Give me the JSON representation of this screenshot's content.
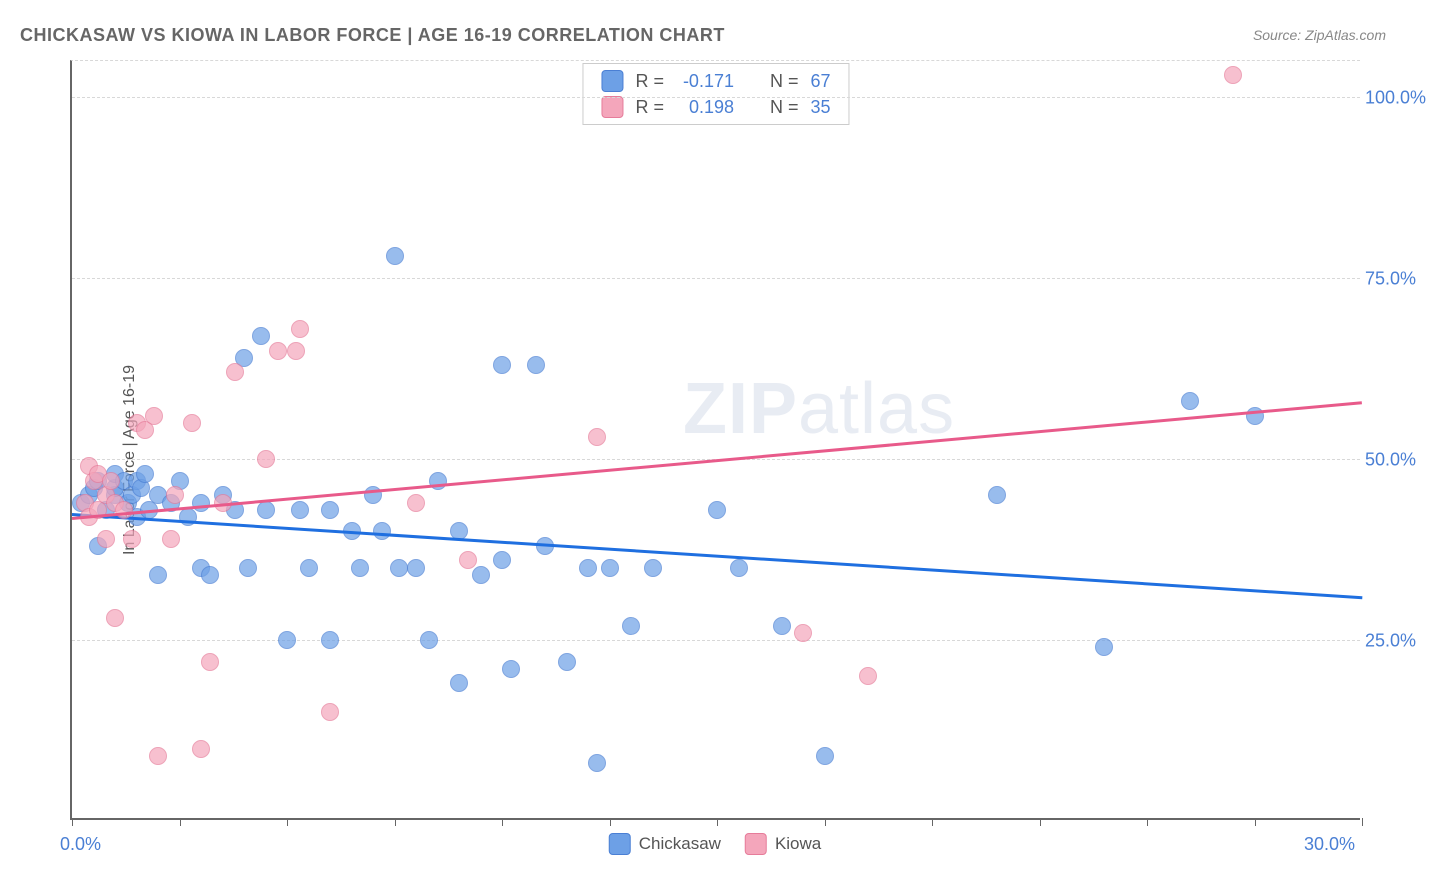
{
  "header": {
    "title": "CHICKASAW VS KIOWA IN LABOR FORCE | AGE 16-19 CORRELATION CHART",
    "source": "Source: ZipAtlas.com"
  },
  "chart": {
    "type": "scatter",
    "watermark": "ZIPatlas",
    "y_axis_title": "In Labor Force | Age 16-19",
    "background_color": "#ffffff",
    "grid_color": "#d8d8d8",
    "axis_color": "#666666",
    "tick_label_color": "#4a7fd4",
    "tick_fontsize": 18,
    "xlim": [
      0,
      30
    ],
    "ylim": [
      0,
      105
    ],
    "x_tick_positions": [
      0,
      2.5,
      5.0,
      7.5,
      10.0,
      12.5,
      15.0,
      17.5,
      20.0,
      22.5,
      25.0,
      27.5,
      30.0
    ],
    "x_tick_labels": {
      "start": "0.0%",
      "end": "30.0%"
    },
    "y_grid_positions": [
      25,
      50,
      75,
      100
    ],
    "y_tick_labels": [
      "25.0%",
      "50.0%",
      "75.0%",
      "100.0%"
    ],
    "marker_radius": 9,
    "marker_fill_opacity": 0.35,
    "series": [
      {
        "name": "Chickasaw",
        "color": "#6da0e6",
        "stroke": "#4a7fd4",
        "trend_color": "#1f6fe0",
        "r_value": "-0.171",
        "n_value": "67",
        "trend": {
          "x1": 0,
          "y1": 42.5,
          "x2": 30,
          "y2": 31.0
        },
        "points": [
          [
            0.2,
            44
          ],
          [
            0.4,
            45
          ],
          [
            0.5,
            46
          ],
          [
            0.6,
            38
          ],
          [
            0.6,
            47
          ],
          [
            0.8,
            43
          ],
          [
            1.0,
            45
          ],
          [
            1.0,
            46
          ],
          [
            1.0,
            48
          ],
          [
            1.2,
            47
          ],
          [
            1.3,
            44
          ],
          [
            1.4,
            45
          ],
          [
            1.5,
            47
          ],
          [
            1.5,
            42
          ],
          [
            1.6,
            46
          ],
          [
            1.7,
            48
          ],
          [
            1.8,
            43
          ],
          [
            2.0,
            45
          ],
          [
            2.0,
            34
          ],
          [
            2.3,
            44
          ],
          [
            2.5,
            47
          ],
          [
            2.7,
            42
          ],
          [
            3.0,
            35
          ],
          [
            3.0,
            44
          ],
          [
            3.2,
            34
          ],
          [
            3.5,
            45
          ],
          [
            3.8,
            43
          ],
          [
            4.0,
            64
          ],
          [
            4.1,
            35
          ],
          [
            4.4,
            67
          ],
          [
            4.5,
            43
          ],
          [
            5.0,
            25
          ],
          [
            5.3,
            43
          ],
          [
            5.5,
            35
          ],
          [
            6.0,
            43
          ],
          [
            6.0,
            25
          ],
          [
            6.5,
            40
          ],
          [
            6.7,
            35
          ],
          [
            7.0,
            45
          ],
          [
            7.2,
            40
          ],
          [
            7.5,
            78
          ],
          [
            7.6,
            35
          ],
          [
            8.0,
            35
          ],
          [
            8.3,
            25
          ],
          [
            8.5,
            47
          ],
          [
            9.0,
            40
          ],
          [
            9.0,
            19
          ],
          [
            9.5,
            34
          ],
          [
            10.0,
            63
          ],
          [
            10.0,
            36
          ],
          [
            10.2,
            21
          ],
          [
            10.8,
            63
          ],
          [
            11.0,
            38
          ],
          [
            11.5,
            22
          ],
          [
            12.0,
            35
          ],
          [
            12.2,
            8
          ],
          [
            12.5,
            35
          ],
          [
            13.0,
            27
          ],
          [
            13.5,
            35
          ],
          [
            15.0,
            43
          ],
          [
            15.5,
            35
          ],
          [
            16.5,
            27
          ],
          [
            17.5,
            9
          ],
          [
            21.5,
            45
          ],
          [
            24.0,
            24
          ],
          [
            26.0,
            58
          ],
          [
            27.5,
            56
          ]
        ]
      },
      {
        "name": "Kiowa",
        "color": "#f4a6bb",
        "stroke": "#e67c9a",
        "trend_color": "#e85a8a",
        "r_value": "0.198",
        "n_value": "35",
        "trend": {
          "x1": 0,
          "y1": 42.0,
          "x2": 30,
          "y2": 58.0
        },
        "points": [
          [
            0.3,
            44
          ],
          [
            0.4,
            49
          ],
          [
            0.4,
            42
          ],
          [
            0.5,
            47
          ],
          [
            0.6,
            43
          ],
          [
            0.6,
            48
          ],
          [
            0.8,
            45
          ],
          [
            0.8,
            39
          ],
          [
            0.9,
            47
          ],
          [
            1.0,
            28
          ],
          [
            1.0,
            44
          ],
          [
            1.2,
            43
          ],
          [
            1.4,
            39
          ],
          [
            1.5,
            55
          ],
          [
            1.7,
            54
          ],
          [
            1.9,
            56
          ],
          [
            2.0,
            9
          ],
          [
            2.3,
            39
          ],
          [
            2.4,
            45
          ],
          [
            2.8,
            55
          ],
          [
            3.0,
            10
          ],
          [
            3.2,
            22
          ],
          [
            3.5,
            44
          ],
          [
            3.8,
            62
          ],
          [
            4.5,
            50
          ],
          [
            4.8,
            65
          ],
          [
            5.2,
            65
          ],
          [
            5.3,
            68
          ],
          [
            6.0,
            15
          ],
          [
            8.0,
            44
          ],
          [
            9.2,
            36
          ],
          [
            12.2,
            53
          ],
          [
            17.0,
            26
          ],
          [
            18.5,
            20
          ],
          [
            27.0,
            103
          ]
        ]
      }
    ],
    "stats_labels": {
      "r": "R =",
      "n": "N ="
    },
    "legend_labels": [
      "Chickasaw",
      "Kiowa"
    ]
  }
}
